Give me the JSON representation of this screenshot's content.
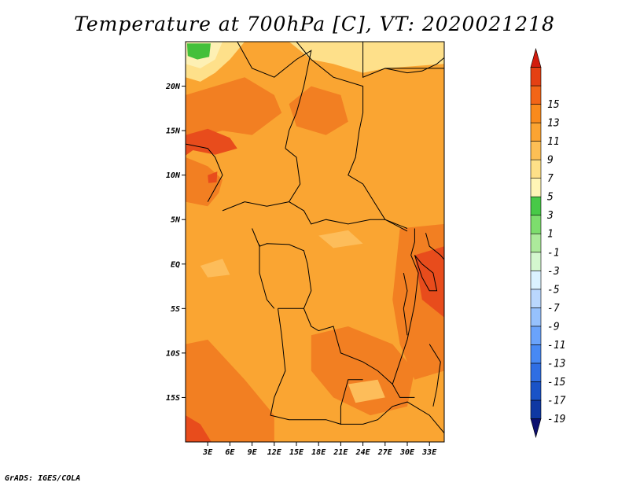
{
  "title": "Temperature at 700hPa [C], VT: 2020021218",
  "credit": "GrADS: IGES/COLA",
  "map": {
    "lat_range": [
      -20,
      25
    ],
    "lon_range": [
      0,
      35
    ],
    "lat_ticks": [
      {
        "value": 20,
        "label": "20N"
      },
      {
        "value": 15,
        "label": "15N"
      },
      {
        "value": 10,
        "label": "10N"
      },
      {
        "value": 5,
        "label": "5N"
      },
      {
        "value": 0,
        "label": "EQ"
      },
      {
        "value": -5,
        "label": "5S"
      },
      {
        "value": -10,
        "label": "10S"
      },
      {
        "value": -15,
        "label": "15S"
      }
    ],
    "lon_ticks": [
      {
        "value": 3,
        "label": "3E"
      },
      {
        "value": 6,
        "label": "6E"
      },
      {
        "value": 9,
        "label": "9E"
      },
      {
        "value": 12,
        "label": "12E"
      },
      {
        "value": 15,
        "label": "15E"
      },
      {
        "value": 18,
        "label": "18E"
      },
      {
        "value": 21,
        "label": "21E"
      },
      {
        "value": 24,
        "label": "24E"
      },
      {
        "value": 27,
        "label": "27E"
      },
      {
        "value": 30,
        "label": "30E"
      },
      {
        "value": 33,
        "label": "33E"
      }
    ],
    "base_color": "#faa532",
    "regions": [
      {
        "name": "cool-sahara-nw",
        "color": "#fee08a",
        "poly": [
          [
            0,
            25
          ],
          [
            8,
            25
          ],
          [
            6,
            23
          ],
          [
            4,
            21.5
          ],
          [
            2,
            20.5
          ],
          [
            0,
            21
          ]
        ]
      },
      {
        "name": "cool-sahara-ne",
        "color": "#fee08a",
        "poly": [
          [
            14,
            25
          ],
          [
            35,
            25
          ],
          [
            35,
            22.5
          ],
          [
            27,
            22
          ],
          [
            24,
            21.5
          ],
          [
            20,
            22.5
          ],
          [
            17,
            23
          ]
        ]
      },
      {
        "name": "pale-corner",
        "color": "#fdf0b4",
        "poly": [
          [
            0,
            25
          ],
          [
            5,
            25
          ],
          [
            4,
            23
          ],
          [
            2,
            22
          ],
          [
            0,
            22.5
          ]
        ]
      },
      {
        "name": "green-patch",
        "color": "#44c03a",
        "poly": [
          [
            0.2,
            24.8
          ],
          [
            3.4,
            24.8
          ],
          [
            3.2,
            23.3
          ],
          [
            1.6,
            23
          ],
          [
            0.3,
            23.4
          ]
        ]
      },
      {
        "name": "warm-sahel-west",
        "color": "#f27f22",
        "poly": [
          [
            0,
            19
          ],
          [
            4,
            20
          ],
          [
            8,
            21
          ],
          [
            12,
            19
          ],
          [
            13,
            17
          ],
          [
            9,
            14.5
          ],
          [
            5,
            15
          ],
          [
            0,
            14
          ]
        ]
      },
      {
        "name": "warm-sahel-central",
        "color": "#f27f22",
        "poly": [
          [
            14,
            18
          ],
          [
            17,
            20
          ],
          [
            21,
            19
          ],
          [
            22,
            16
          ],
          [
            19,
            14.5
          ],
          [
            15,
            15.5
          ]
        ]
      },
      {
        "name": "hot-band-west",
        "color": "#e84c1c",
        "poly": [
          [
            0,
            14.5
          ],
          [
            3,
            15.2
          ],
          [
            6,
            14.2
          ],
          [
            7,
            13
          ],
          [
            4,
            12.3
          ],
          [
            1,
            12.8
          ],
          [
            0,
            12.2
          ]
        ]
      },
      {
        "name": "warm-west-coast",
        "color": "#f27f22",
        "poly": [
          [
            0,
            12
          ],
          [
            3,
            11
          ],
          [
            5,
            9.5
          ],
          [
            4.5,
            8
          ],
          [
            3,
            6.5
          ],
          [
            0,
            7
          ]
        ]
      },
      {
        "name": "warm-east-africa",
        "color": "#f27f22",
        "poly": [
          [
            29,
            4
          ],
          [
            35,
            4.5
          ],
          [
            35,
            -12
          ],
          [
            31,
            -13
          ],
          [
            29,
            -9
          ],
          [
            28,
            -4
          ]
        ]
      },
      {
        "name": "warm-south-central",
        "color": "#f27f22",
        "poly": [
          [
            17,
            -8
          ],
          [
            22,
            -7
          ],
          [
            28,
            -9
          ],
          [
            31,
            -12
          ],
          [
            30,
            -16
          ],
          [
            25,
            -17
          ],
          [
            20,
            -15
          ],
          [
            17,
            -12
          ]
        ]
      },
      {
        "name": "warm-southwest",
        "color": "#f27f22",
        "poly": [
          [
            0,
            -9
          ],
          [
            3,
            -8.5
          ],
          [
            8,
            -13
          ],
          [
            12,
            -17
          ],
          [
            12,
            -20
          ],
          [
            0,
            -20
          ]
        ]
      },
      {
        "name": "hot-southwest-corner",
        "color": "#e84c1c",
        "poly": [
          [
            0,
            -17
          ],
          [
            2,
            -18
          ],
          [
            3.5,
            -20
          ],
          [
            0,
            -20
          ]
        ]
      },
      {
        "name": "hot-east-lakes",
        "color": "#e84c1c",
        "poly": [
          [
            31,
            1
          ],
          [
            35,
            2
          ],
          [
            35,
            -6
          ],
          [
            32,
            -4
          ]
        ]
      },
      {
        "name": "pale-patch-gabon",
        "color": "#fdbd5a",
        "poly": [
          [
            2,
            -0.2
          ],
          [
            5,
            0.6
          ],
          [
            6,
            -1.2
          ],
          [
            3,
            -1.5
          ]
        ]
      },
      {
        "name": "pale-patch-congo",
        "color": "#fdbd5a",
        "poly": [
          [
            18,
            3.2
          ],
          [
            22,
            3.8
          ],
          [
            24,
            2.3
          ],
          [
            20,
            1.8
          ]
        ]
      },
      {
        "name": "pale-patch-south",
        "color": "#fdbd5a",
        "poly": [
          [
            22,
            -13.5
          ],
          [
            26,
            -13
          ],
          [
            27,
            -15
          ],
          [
            23,
            -15.6
          ]
        ]
      },
      {
        "name": "hot-dot-west",
        "color": "#e84c1c",
        "poly": [
          [
            3,
            10
          ],
          [
            4.3,
            10.4
          ],
          [
            4.2,
            9.2
          ],
          [
            3.1,
            9.1
          ]
        ]
      }
    ],
    "boundaries": [
      [
        [
          0,
          13.5
        ],
        [
          3,
          13
        ],
        [
          4,
          12
        ],
        [
          5,
          10
        ],
        [
          4,
          8.5
        ],
        [
          3,
          7
        ]
      ],
      [
        [
          7,
          25
        ],
        [
          9,
          22
        ],
        [
          12,
          21
        ],
        [
          15,
          23
        ],
        [
          17,
          24
        ],
        [
          16,
          20
        ],
        [
          15,
          17
        ],
        [
          14,
          15
        ],
        [
          13.5,
          13
        ]
      ],
      [
        [
          15,
          25
        ],
        [
          17,
          23
        ],
        [
          20,
          21
        ],
        [
          24,
          20
        ],
        [
          24,
          17
        ],
        [
          23.5,
          15
        ],
        [
          23,
          12
        ],
        [
          22,
          10
        ],
        [
          24,
          9
        ],
        [
          27,
          5
        ],
        [
          30,
          4
        ]
      ],
      [
        [
          24,
          25
        ],
        [
          24,
          21
        ],
        [
          27,
          22
        ],
        [
          33,
          22
        ],
        [
          35,
          22
        ]
      ],
      [
        [
          13.5,
          13
        ],
        [
          15,
          12
        ],
        [
          15.5,
          9
        ],
        [
          14,
          7
        ],
        [
          16,
          6
        ],
        [
          17,
          4.5
        ],
        [
          19,
          5
        ],
        [
          22,
          4.5
        ],
        [
          25,
          5
        ],
        [
          27,
          5
        ],
        [
          30,
          3.7
        ]
      ],
      [
        [
          5,
          6
        ],
        [
          8,
          7
        ],
        [
          11,
          6.5
        ],
        [
          14,
          7
        ]
      ],
      [
        [
          9,
          4
        ],
        [
          10,
          2
        ],
        [
          11,
          2.3
        ],
        [
          14,
          2.2
        ],
        [
          16,
          1.5
        ],
        [
          16.5,
          0
        ],
        [
          17,
          -3
        ],
        [
          16,
          -5
        ],
        [
          12.5,
          -5
        ]
      ],
      [
        [
          10,
          2.2
        ],
        [
          10,
          -1
        ],
        [
          11,
          -4
        ],
        [
          12,
          -5
        ]
      ],
      [
        [
          16,
          -5
        ],
        [
          17,
          -7
        ],
        [
          18,
          -7.5
        ],
        [
          20,
          -7
        ],
        [
          21,
          -10
        ],
        [
          24,
          -11
        ],
        [
          26,
          -12
        ],
        [
          28,
          -13.5
        ],
        [
          29,
          -11
        ],
        [
          30,
          -8.5
        ],
        [
          31,
          -4.5
        ],
        [
          31.5,
          -1
        ],
        [
          30.5,
          1
        ],
        [
          31,
          2.5
        ],
        [
          31,
          4
        ]
      ],
      [
        [
          12.5,
          -5
        ],
        [
          13,
          -8
        ],
        [
          13.5,
          -12
        ],
        [
          12,
          -15
        ],
        [
          11.5,
          -17
        ],
        [
          14,
          -17.5
        ],
        [
          19,
          -17.5
        ],
        [
          21,
          -18
        ],
        [
          21,
          -16
        ],
        [
          22,
          -13
        ],
        [
          24,
          -13
        ]
      ],
      [
        [
          21,
          -18
        ],
        [
          24,
          -18
        ],
        [
          26,
          -17.5
        ],
        [
          28,
          -16
        ],
        [
          30,
          -15.5
        ],
        [
          33,
          -17
        ],
        [
          35,
          -19
        ]
      ],
      [
        [
          28,
          -13.5
        ],
        [
          29,
          -15
        ],
        [
          31,
          -15
        ]
      ],
      [
        [
          33,
          -9
        ],
        [
          34.5,
          -11
        ],
        [
          34,
          -14
        ],
        [
          33.5,
          -16
        ]
      ],
      [
        [
          29.5,
          -1
        ],
        [
          30,
          -3
        ],
        [
          29.5,
          -5
        ],
        [
          30,
          -8
        ]
      ],
      [
        [
          31,
          1
        ],
        [
          32,
          0
        ],
        [
          33.5,
          -1
        ],
        [
          34,
          -3
        ],
        [
          33,
          -3
        ],
        [
          32,
          -1.5
        ],
        [
          31,
          1
        ]
      ],
      [
        [
          32.5,
          3.5
        ],
        [
          33,
          2
        ],
        [
          34.5,
          1
        ],
        [
          35,
          0.5
        ]
      ],
      [
        [
          27,
          22
        ],
        [
          30,
          21.5
        ],
        [
          32,
          21.7
        ],
        [
          34,
          22.5
        ],
        [
          35,
          23.2
        ]
      ]
    ]
  },
  "colorbar": {
    "colors": [
      "#0c0f6e",
      "#0f38a3",
      "#1a53c7",
      "#2f6ee3",
      "#4789f4",
      "#6aa3fb",
      "#96c1fd",
      "#bad7fd",
      "#dbf2ff",
      "#d4f7cf",
      "#acea9b",
      "#7ddd6d",
      "#48c947",
      "#fff5b6",
      "#fee088",
      "#fdbf55",
      "#fba432",
      "#f98a1c",
      "#f26517",
      "#e44013",
      "#d21c0e"
    ],
    "labels": [
      "-19",
      "-17",
      "-15",
      "-13",
      "-11",
      "-9",
      "-7",
      "-5",
      "-3",
      "-1",
      "1",
      "3",
      "5",
      "7",
      "9",
      "11",
      "13",
      "15"
    ]
  }
}
